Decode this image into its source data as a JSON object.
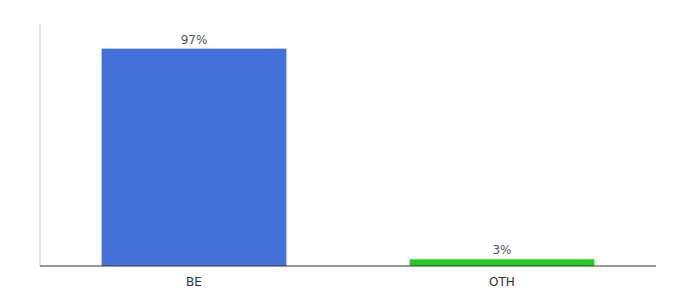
{
  "chart_data": {
    "type": "bar",
    "categories": [
      "BE",
      "OTH"
    ],
    "values": [
      97,
      3
    ],
    "value_labels": [
      "97%",
      "3%"
    ],
    "colors": [
      "#4472db",
      "#22cc22"
    ],
    "ylim": [
      0,
      108
    ],
    "data_labels": true,
    "tick_labels": "x"
  }
}
